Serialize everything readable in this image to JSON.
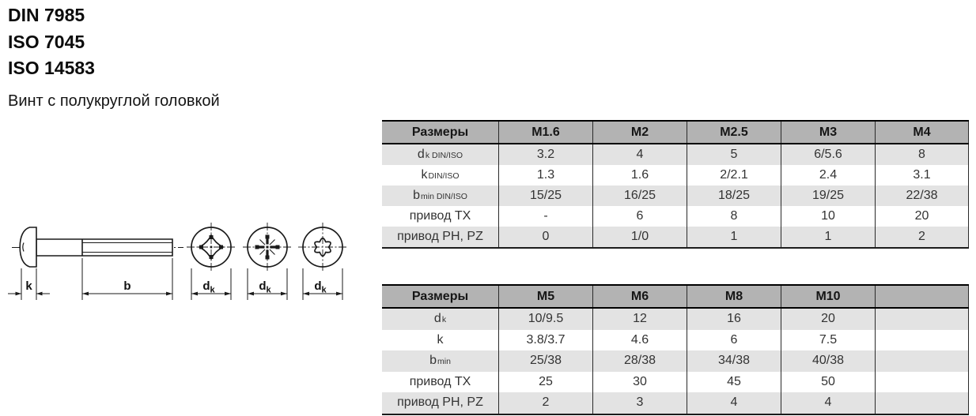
{
  "header": {
    "standards": [
      "DIN 7985",
      "ISO 7045",
      "ISO 14583"
    ],
    "subtitle": "Винт с полукруглой головкой"
  },
  "drawing": {
    "labels": {
      "k": "k",
      "b": "b",
      "dk_main": "d",
      "dk_sub": "k"
    },
    "views": [
      "side-view",
      "phillips-recess",
      "pozidriv-recess",
      "torx-recess"
    ],
    "stroke_color": "#1a1a1a"
  },
  "colors": {
    "table_header_bg": "#b3b3b3",
    "row_alt_bg": "#e3e3e3",
    "row_bg": "#ffffff",
    "border": "#1b1b1b",
    "text": "#333333"
  },
  "tables": [
    {
      "name": "sizes-small",
      "header": [
        "Размеры",
        "M1.6",
        "M2",
        "M2.5",
        "M3",
        "M4"
      ],
      "rows": [
        {
          "label_main": "d",
          "label_sub": "k DIN/ISO",
          "values": [
            "3.2",
            "4",
            "5",
            "6/5.6",
            "8"
          ]
        },
        {
          "label_main": "k",
          "label_sub": "DIN/ISO",
          "values": [
            "1.3",
            "1.6",
            "2/2.1",
            "2.4",
            "3.1"
          ]
        },
        {
          "label_main": "b",
          "label_sub": "min DIN/ISO",
          "values": [
            "15/25",
            "16/25",
            "18/25",
            "19/25",
            "22/38"
          ]
        },
        {
          "label_main": "привод TX",
          "label_sub": "",
          "values": [
            "-",
            "6",
            "8",
            "10",
            "20"
          ]
        },
        {
          "label_main": "привод PH, PZ",
          "label_sub": "",
          "values": [
            "0",
            "1/0",
            "1",
            "1",
            "2"
          ]
        }
      ]
    },
    {
      "name": "sizes-large",
      "header": [
        "Размеры",
        "M5",
        "M6",
        "M8",
        "M10",
        ""
      ],
      "rows": [
        {
          "label_main": "d",
          "label_sub": "k",
          "values": [
            "10/9.5",
            "12",
            "16",
            "20",
            ""
          ]
        },
        {
          "label_main": "k",
          "label_sub": "",
          "values": [
            "3.8/3.7",
            "4.6",
            "6",
            "7.5",
            ""
          ]
        },
        {
          "label_main": "b",
          "label_sub": "min",
          "values": [
            "25/38",
            "28/38",
            "34/38",
            "40/38",
            ""
          ]
        },
        {
          "label_main": "привод TX",
          "label_sub": "",
          "values": [
            "25",
            "30",
            "45",
            "50",
            ""
          ]
        },
        {
          "label_main": "привод PH, PZ",
          "label_sub": "",
          "values": [
            "2",
            "3",
            "4",
            "4",
            ""
          ]
        }
      ]
    }
  ]
}
